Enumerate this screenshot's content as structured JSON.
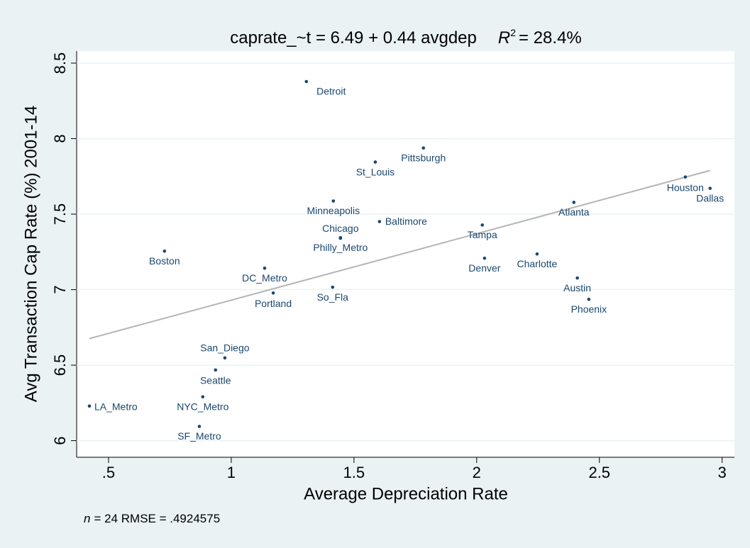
{
  "chart_data": {
    "type": "scatter",
    "title": {
      "equation": "caprate_~t = 6.49 + 0.44 avgdep",
      "r": "R",
      "sup": "2",
      "r2": "= 28.4%"
    },
    "x_label": "Average Depreciation Rate",
    "y_label": "Avg Transaction Cap Rate (%) 2001-14",
    "note": {
      "n": "n",
      "rest": "= 24    RMSE = .4924575"
    },
    "xlim": [
      0.37,
      3.05
    ],
    "ylim": [
      5.89,
      8.58
    ],
    "xticks": [
      {
        "value": 0.5,
        "label": ".5"
      },
      1,
      1.5,
      2,
      2.5,
      3
    ],
    "yticks": [
      6,
      6.5,
      7,
      7.5,
      8,
      8.5
    ],
    "grid": true,
    "color": "#1a476f",
    "fit_color": "#b5b5b5",
    "labels": [
      "Detroit",
      "Pittsburgh",
      "St_Louis",
      "Houston",
      "Dallas",
      "Atlanta",
      "Minneapolis",
      "Baltimore",
      "Tampa",
      "Chicago",
      "Philly_Metro",
      "Boston",
      "Denver",
      "Charlotte",
      "DC_Metro",
      "Austin",
      "Portland",
      "So_Fla",
      "Phoenix",
      "San_Diego",
      "Seattle",
      "NYC_Metro",
      "LA_Metro",
      "SF_Metro"
    ],
    "x": [
      1.306,
      1.783,
      1.587,
      2.85,
      2.951,
      2.396,
      1.416,
      1.604,
      2.023,
      1.445,
      1.445,
      0.728,
      2.032,
      2.246,
      1.136,
      2.41,
      1.171,
      1.413,
      2.457,
      0.974,
      0.936,
      0.884,
      0.422,
      0.87
    ],
    "values": [
      8.378,
      7.938,
      7.845,
      7.746,
      7.671,
      7.578,
      7.587,
      7.451,
      7.428,
      7.344,
      7.34,
      7.255,
      7.208,
      7.236,
      7.142,
      7.077,
      6.978,
      7.016,
      6.936,
      6.548,
      6.468,
      6.29,
      6.229,
      6.094
    ],
    "fit_line": {
      "x": [
        0.422,
        2.951
      ],
      "y": [
        6.676,
        7.789
      ]
    }
  }
}
